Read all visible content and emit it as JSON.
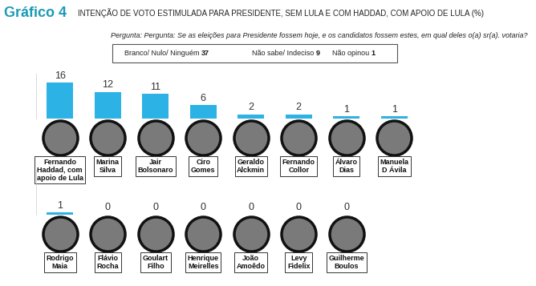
{
  "header": {
    "title": "Gráfico 4",
    "subtitle": "INTENÇÃO DE VOTO ESTIMULADA PARA PRESIDENTE, SEM LULA E COM HADDAD, COM APOIO DE LULA (%)",
    "question": "Pergunta: Pergunta: Se as eleições para Presidente fossem hoje, e os candidatos fossem estes, em qual deles o(a) sr(a). votaria?",
    "annotations": [
      {
        "label": "Branco/ Nulo/ Ninguém",
        "value": 37
      },
      {
        "label": "Não sabe/ Indeciso",
        "value": 9
      },
      {
        "label": "Não opinou",
        "value": 1
      }
    ]
  },
  "chart_data": [
    {
      "type": "bar",
      "categories": [
        "Fernando\nHaddad, com\napoio de Lula",
        "Marina\nSilva",
        "Jair\nBolsonaro",
        "Ciro\nGomes",
        "Geraldo\nAlckmin",
        "Fernando\nCollor",
        "Álvaro\nDias",
        "Manuela\nD Ávila"
      ],
      "values": [
        16,
        12,
        11,
        6,
        2,
        2,
        1,
        1
      ],
      "color": "#2cb2e4",
      "ylim": [
        0,
        20
      ],
      "data_labels": true,
      "tick_labels": false
    },
    {
      "type": "bar",
      "categories": [
        "Rodrigo\nMaia",
        "Flávio\nRocha",
        "Goulart\nFilho",
        "Henrique\nMeirelles",
        "João\nAmoêdo",
        "Levy\nFidelix",
        "Guilherme\nBoulos"
      ],
      "values": [
        1,
        0,
        0,
        0,
        0,
        0,
        0
      ],
      "color": "#2cb2e4",
      "ylim": [
        0,
        20
      ],
      "data_labels": true,
      "tick_labels": false
    }
  ]
}
